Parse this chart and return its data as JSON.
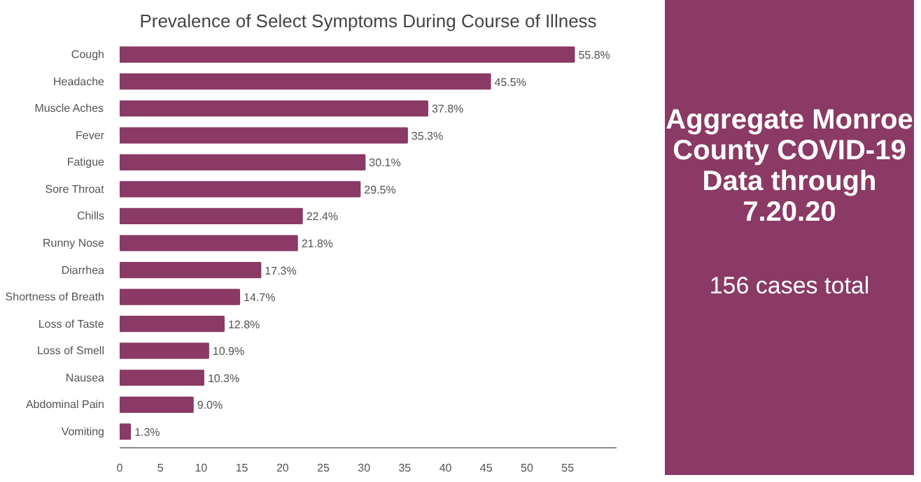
{
  "chart_data": {
    "type": "bar",
    "orientation": "horizontal",
    "title": "Prevalence of Select Symptoms During Course of Illness",
    "categories": [
      "Cough",
      "Headache",
      "Muscle Aches",
      "Fever",
      "Fatigue",
      "Sore Throat",
      "Chills",
      "Runny Nose",
      "Diarrhea",
      "Shortness of Breath",
      "Loss of Taste",
      "Loss of Smell",
      "Nausea",
      "Abdominal Pain",
      "Vomiting"
    ],
    "values": [
      55.8,
      45.5,
      37.8,
      35.3,
      30.1,
      29.5,
      22.4,
      21.8,
      17.3,
      14.7,
      12.8,
      10.9,
      10.3,
      9.0,
      1.3
    ],
    "value_labels": [
      "55.8%",
      "45.5%",
      "37.8%",
      "35.3%",
      "30.1%",
      "29.5%",
      "22.4%",
      "21.8%",
      "17.3%",
      "14.7%",
      "12.8%",
      "10.9%",
      "10.3%",
      "9.0%",
      "1.3%"
    ],
    "color": "#8a3a64",
    "xlim": [
      0,
      61
    ],
    "xticks": [
      0,
      5,
      10,
      15,
      20,
      25,
      30,
      35,
      40,
      45,
      50,
      55
    ],
    "grid": false,
    "annotations": [
      "Aggregate Monroe County COVID-19 Data through 7.20.20",
      "156 cases total"
    ]
  }
}
